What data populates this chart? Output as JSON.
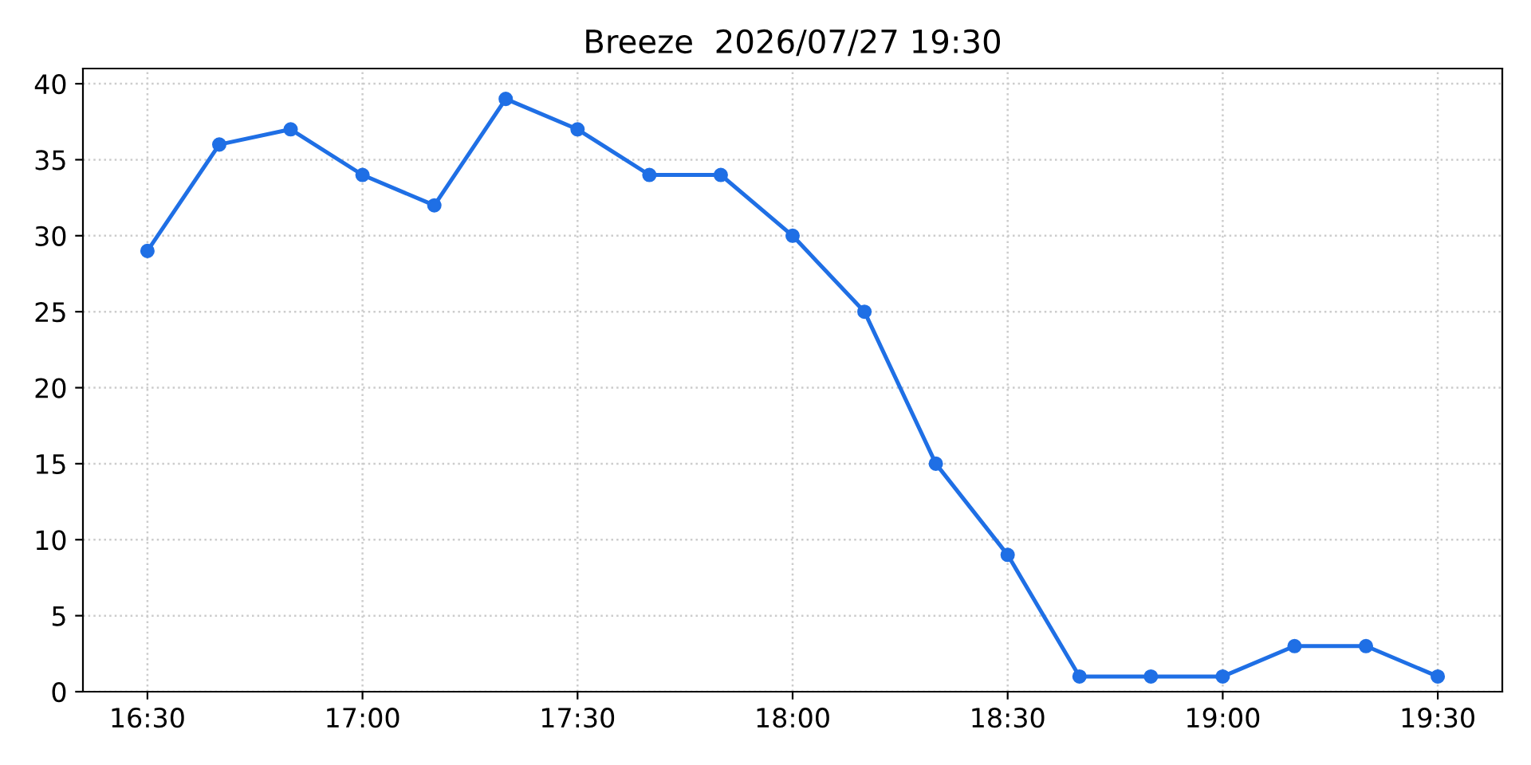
{
  "chart_data": {
    "type": "line",
    "title": "Breeze  2026/07/27 19:30",
    "x": [
      16.5,
      16.667,
      16.833,
      17,
      17.167,
      17.333,
      17.5,
      17.667,
      17.833,
      18,
      18.167,
      18.333,
      18.5,
      18.667,
      18.833,
      19,
      19.167,
      19.333,
      19.5
    ],
    "series": [
      {
        "color": "#1f6fe5",
        "values": [
          29,
          36,
          37,
          34,
          32,
          39,
          37,
          34,
          34,
          30,
          25,
          15,
          9,
          1,
          1,
          1,
          3,
          3,
          1
        ]
      }
    ],
    "xlim": [
      16.35,
      19.65
    ],
    "xticks": [
      {
        "value": 16.5,
        "label": "16:30"
      },
      {
        "value": 17,
        "label": "17:00"
      },
      {
        "value": 17.5,
        "label": "17:30"
      },
      {
        "value": 18,
        "label": "18:00"
      },
      {
        "value": 18.5,
        "label": "18:30"
      },
      {
        "value": 19,
        "label": "19:00"
      },
      {
        "value": 19.5,
        "label": "19:30"
      }
    ],
    "ylim": [
      0,
      41
    ],
    "yticks": [
      0,
      5,
      10,
      15,
      20,
      25,
      30,
      35,
      40
    ],
    "grid": true,
    "marker": "circle",
    "line_style": "solid"
  }
}
